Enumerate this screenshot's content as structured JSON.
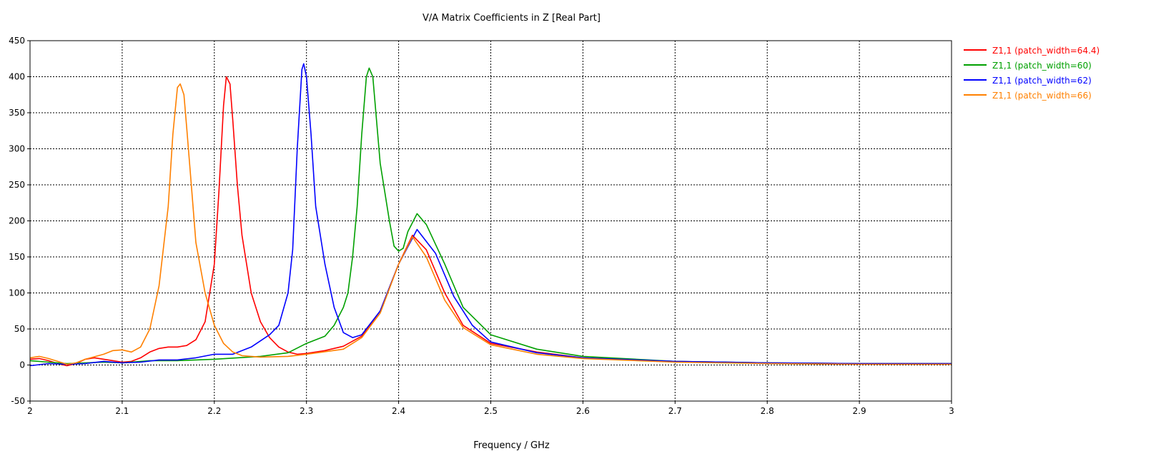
{
  "chart_data": {
    "type": "line",
    "title": "V/A Matrix Coefficients in Z [Real Part]",
    "xlabel": "Frequency / GHz",
    "ylabel": "",
    "xlim": [
      2,
      3
    ],
    "ylim": [
      -50,
      450
    ],
    "xticks": [
      2,
      2.1,
      2.2,
      2.3,
      2.4,
      2.5,
      2.6,
      2.7,
      2.8,
      2.9,
      3
    ],
    "yticks": [
      -50,
      0,
      50,
      100,
      150,
      200,
      250,
      300,
      350,
      400,
      450
    ],
    "grid": true,
    "legend_position": "top-right",
    "series": [
      {
        "name": "Z1,1 (patch_width=64.4)",
        "color": "#ff0000",
        "points": [
          [
            2,
            8
          ],
          [
            2.01,
            9
          ],
          [
            2.02,
            6
          ],
          [
            2.03,
            2
          ],
          [
            2.04,
            -1
          ],
          [
            2.05,
            2
          ],
          [
            2.06,
            8
          ],
          [
            2.07,
            10
          ],
          [
            2.08,
            8
          ],
          [
            2.09,
            6
          ],
          [
            2.1,
            4
          ],
          [
            2.11,
            5
          ],
          [
            2.12,
            10
          ],
          [
            2.13,
            18
          ],
          [
            2.14,
            23
          ],
          [
            2.15,
            25
          ],
          [
            2.16,
            25
          ],
          [
            2.17,
            27
          ],
          [
            2.18,
            35
          ],
          [
            2.19,
            60
          ],
          [
            2.2,
            140
          ],
          [
            2.205,
            240
          ],
          [
            2.21,
            360
          ],
          [
            2.213,
            400
          ],
          [
            2.217,
            390
          ],
          [
            2.22,
            340
          ],
          [
            2.225,
            250
          ],
          [
            2.23,
            180
          ],
          [
            2.24,
            100
          ],
          [
            2.25,
            60
          ],
          [
            2.26,
            38
          ],
          [
            2.27,
            25
          ],
          [
            2.28,
            18
          ],
          [
            2.29,
            15
          ],
          [
            2.3,
            16
          ],
          [
            2.32,
            20
          ],
          [
            2.34,
            26
          ],
          [
            2.36,
            40
          ],
          [
            2.38,
            75
          ],
          [
            2.4,
            140
          ],
          [
            2.415,
            180
          ],
          [
            2.43,
            160
          ],
          [
            2.45,
            100
          ],
          [
            2.47,
            55
          ],
          [
            2.5,
            30
          ],
          [
            2.55,
            18
          ],
          [
            2.6,
            10
          ],
          [
            2.7,
            5
          ],
          [
            2.8,
            3
          ],
          [
            2.9,
            2
          ],
          [
            3,
            2
          ]
        ]
      },
      {
        "name": "Z1,1 (patch_width=60)",
        "color": "#00a000",
        "points": [
          [
            2,
            6
          ],
          [
            2.02,
            4
          ],
          [
            2.04,
            2
          ],
          [
            2.06,
            3
          ],
          [
            2.08,
            4
          ],
          [
            2.1,
            3
          ],
          [
            2.13,
            6
          ],
          [
            2.16,
            6
          ],
          [
            2.2,
            8
          ],
          [
            2.25,
            12
          ],
          [
            2.28,
            17
          ],
          [
            2.3,
            30
          ],
          [
            2.32,
            40
          ],
          [
            2.33,
            55
          ],
          [
            2.34,
            80
          ],
          [
            2.345,
            100
          ],
          [
            2.35,
            150
          ],
          [
            2.355,
            220
          ],
          [
            2.36,
            320
          ],
          [
            2.365,
            400
          ],
          [
            2.368,
            412
          ],
          [
            2.372,
            400
          ],
          [
            2.38,
            280
          ],
          [
            2.39,
            200
          ],
          [
            2.395,
            165
          ],
          [
            2.4,
            158
          ],
          [
            2.405,
            162
          ],
          [
            2.41,
            185
          ],
          [
            2.42,
            210
          ],
          [
            2.43,
            195
          ],
          [
            2.45,
            140
          ],
          [
            2.47,
            80
          ],
          [
            2.5,
            42
          ],
          [
            2.55,
            22
          ],
          [
            2.6,
            12
          ],
          [
            2.7,
            5
          ],
          [
            2.8,
            3
          ],
          [
            2.9,
            2
          ],
          [
            3,
            2
          ]
        ]
      },
      {
        "name": "Z1,1 (patch_width=62)",
        "color": "#0000ff",
        "points": [
          [
            2,
            -1
          ],
          [
            2.02,
            2
          ],
          [
            2.04,
            1
          ],
          [
            2.06,
            2
          ],
          [
            2.08,
            5
          ],
          [
            2.1,
            3
          ],
          [
            2.12,
            4
          ],
          [
            2.14,
            7
          ],
          [
            2.16,
            7
          ],
          [
            2.18,
            10
          ],
          [
            2.2,
            15
          ],
          [
            2.22,
            15
          ],
          [
            2.24,
            25
          ],
          [
            2.26,
            42
          ],
          [
            2.27,
            55
          ],
          [
            2.28,
            100
          ],
          [
            2.285,
            160
          ],
          [
            2.29,
            300
          ],
          [
            2.295,
            410
          ],
          [
            2.297,
            418
          ],
          [
            2.3,
            400
          ],
          [
            2.305,
            320
          ],
          [
            2.31,
            220
          ],
          [
            2.32,
            140
          ],
          [
            2.33,
            80
          ],
          [
            2.34,
            45
          ],
          [
            2.35,
            38
          ],
          [
            2.36,
            42
          ],
          [
            2.38,
            75
          ],
          [
            2.4,
            140
          ],
          [
            2.42,
            188
          ],
          [
            2.44,
            155
          ],
          [
            2.46,
            95
          ],
          [
            2.48,
            55
          ],
          [
            2.5,
            32
          ],
          [
            2.55,
            17
          ],
          [
            2.6,
            10
          ],
          [
            2.7,
            5
          ],
          [
            2.8,
            3
          ],
          [
            2.9,
            2
          ],
          [
            3,
            2
          ]
        ]
      },
      {
        "name": "Z1,1 (patch_width=66)",
        "color": "#ff8000",
        "points": [
          [
            2,
            10
          ],
          [
            2.01,
            12
          ],
          [
            2.02,
            9
          ],
          [
            2.03,
            5
          ],
          [
            2.04,
            1
          ],
          [
            2.05,
            3
          ],
          [
            2.06,
            8
          ],
          [
            2.08,
            15
          ],
          [
            2.09,
            20
          ],
          [
            2.1,
            21
          ],
          [
            2.11,
            18
          ],
          [
            2.12,
            25
          ],
          [
            2.13,
            50
          ],
          [
            2.14,
            110
          ],
          [
            2.15,
            220
          ],
          [
            2.155,
            320
          ],
          [
            2.16,
            385
          ],
          [
            2.163,
            390
          ],
          [
            2.167,
            375
          ],
          [
            2.17,
            330
          ],
          [
            2.175,
            250
          ],
          [
            2.18,
            170
          ],
          [
            2.19,
            100
          ],
          [
            2.2,
            55
          ],
          [
            2.21,
            30
          ],
          [
            2.22,
            18
          ],
          [
            2.23,
            13
          ],
          [
            2.25,
            11
          ],
          [
            2.28,
            12
          ],
          [
            2.3,
            15
          ],
          [
            2.34,
            22
          ],
          [
            2.36,
            38
          ],
          [
            2.38,
            72
          ],
          [
            2.4,
            140
          ],
          [
            2.415,
            178
          ],
          [
            2.43,
            150
          ],
          [
            2.45,
            90
          ],
          [
            2.47,
            52
          ],
          [
            2.5,
            28
          ],
          [
            2.55,
            15
          ],
          [
            2.6,
            9
          ],
          [
            2.7,
            4
          ],
          [
            2.8,
            2
          ],
          [
            2.9,
            1
          ],
          [
            3,
            1
          ]
        ]
      }
    ]
  }
}
